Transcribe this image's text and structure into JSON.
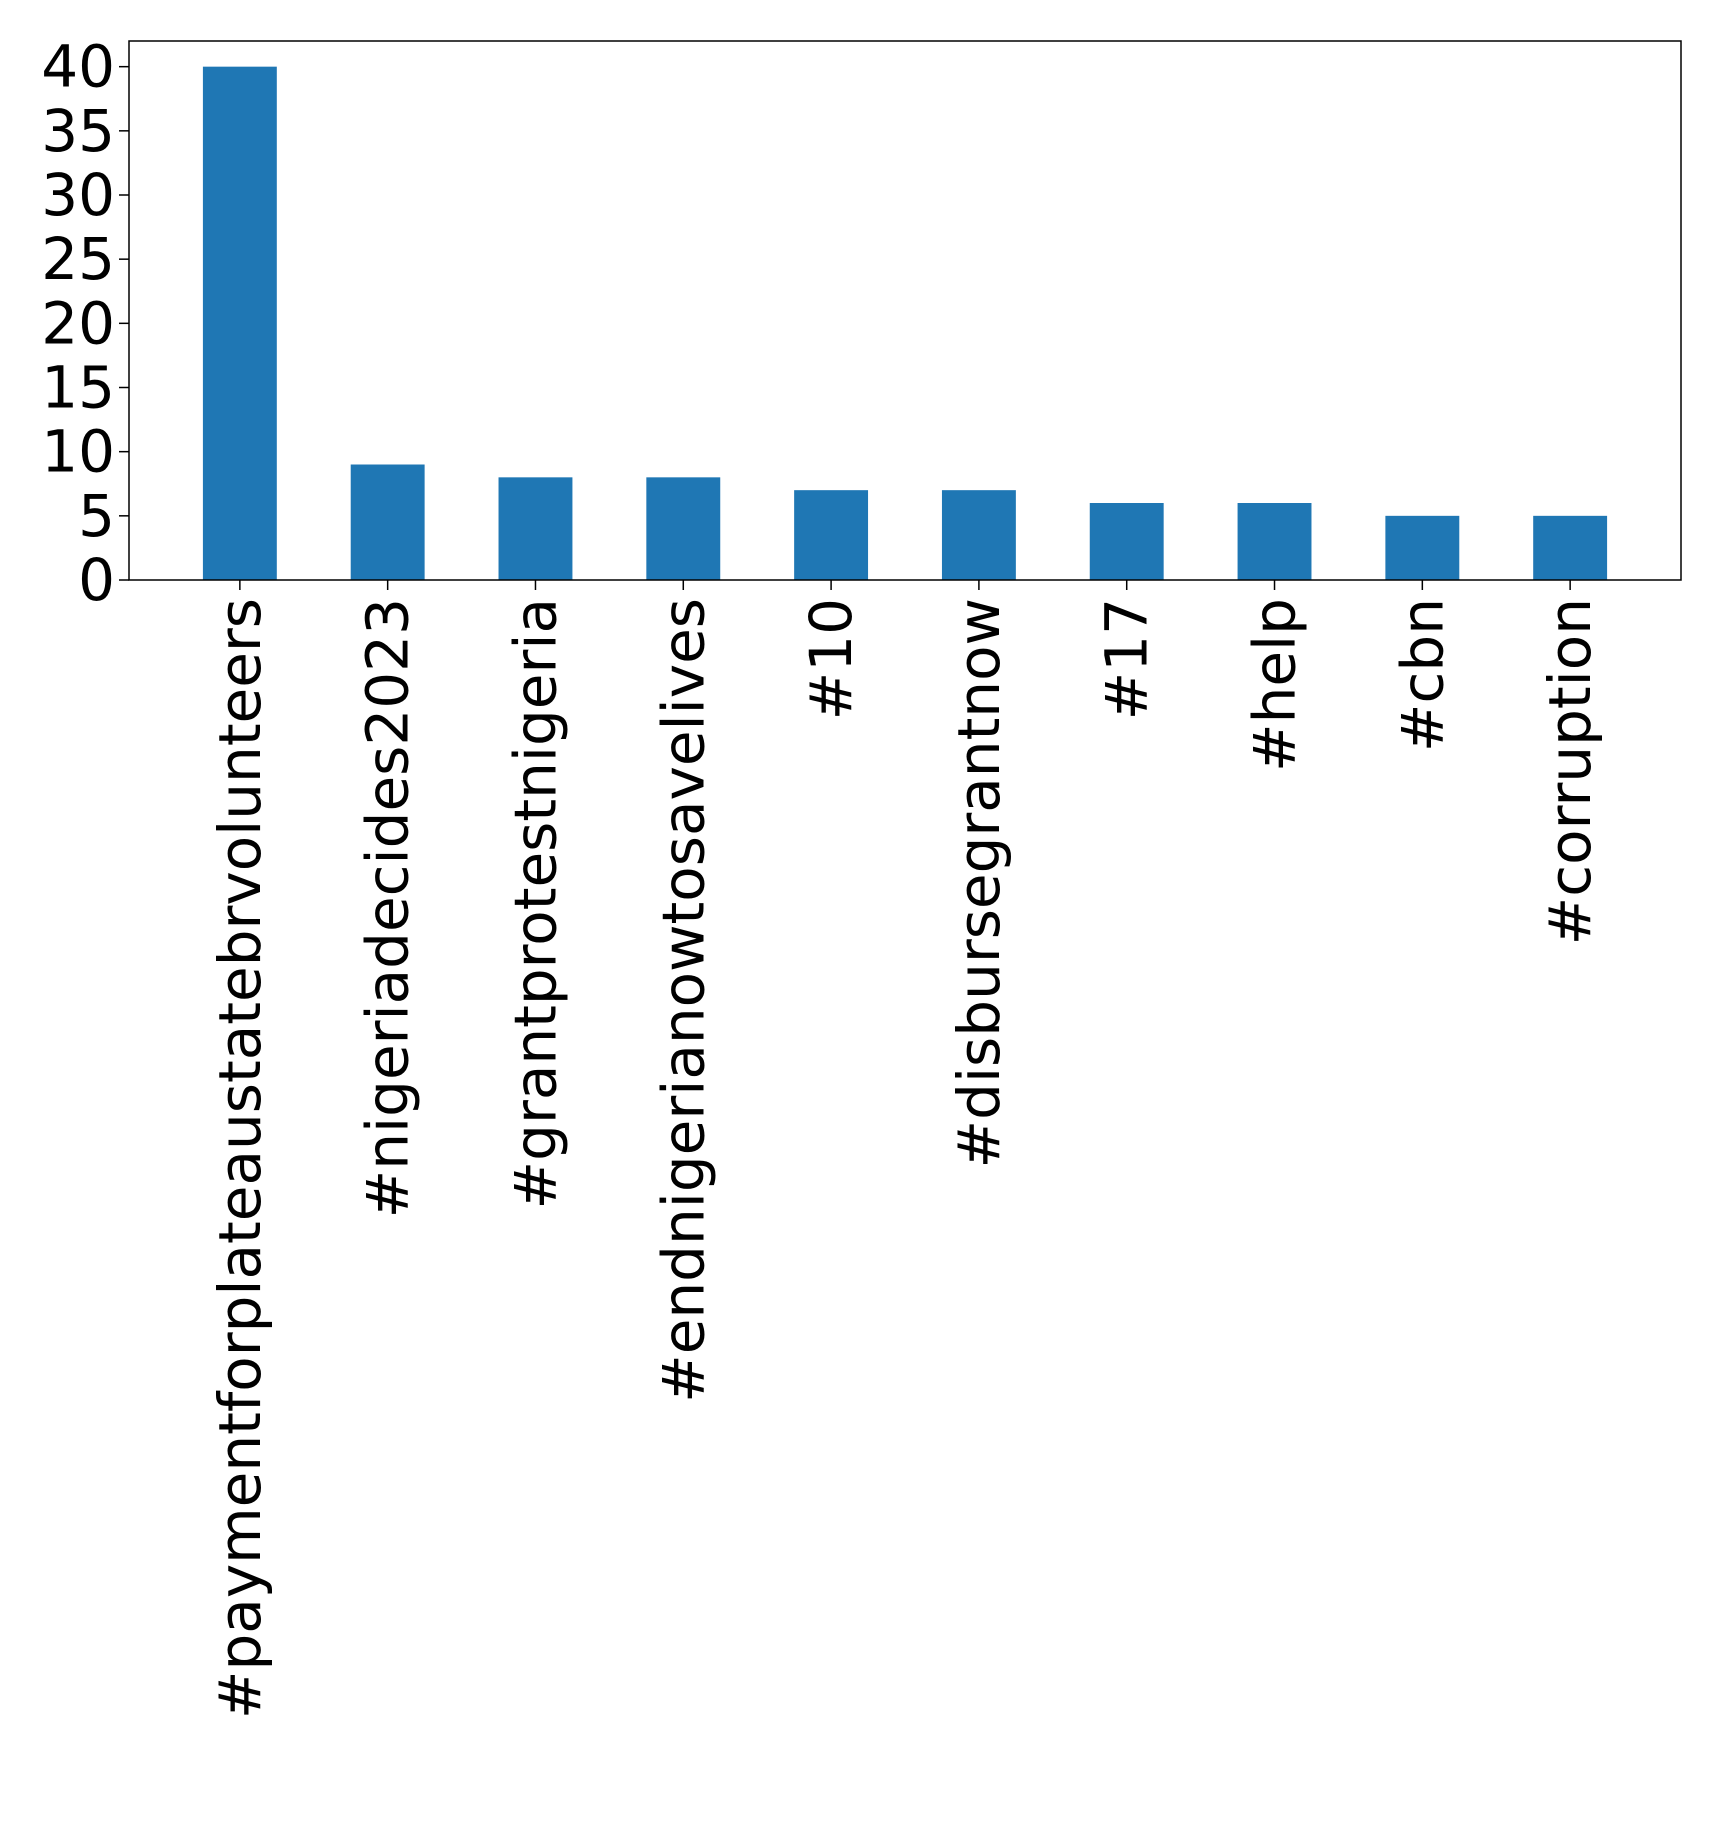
{
  "chart_data": {
    "type": "bar",
    "title": "",
    "xlabel": "",
    "ylabel": "",
    "categories": [
      "#paymentforplateaustatebrvolunteers",
      "#nigeriadecides2023",
      "#grantprotestnigeria",
      "#endnigerianowtosavelives",
      "#10",
      "#disbursegrantnow",
      "#17",
      "#help",
      "#cbn",
      "#corruption"
    ],
    "values": [
      40,
      9,
      8,
      8,
      7,
      7,
      6,
      6,
      5,
      5
    ],
    "ylim": [
      0,
      42
    ],
    "yticks": [
      0,
      5,
      10,
      15,
      20,
      25,
      30,
      35,
      40
    ],
    "bar_color": "#1f77b4",
    "grid": false,
    "legend": "none"
  }
}
